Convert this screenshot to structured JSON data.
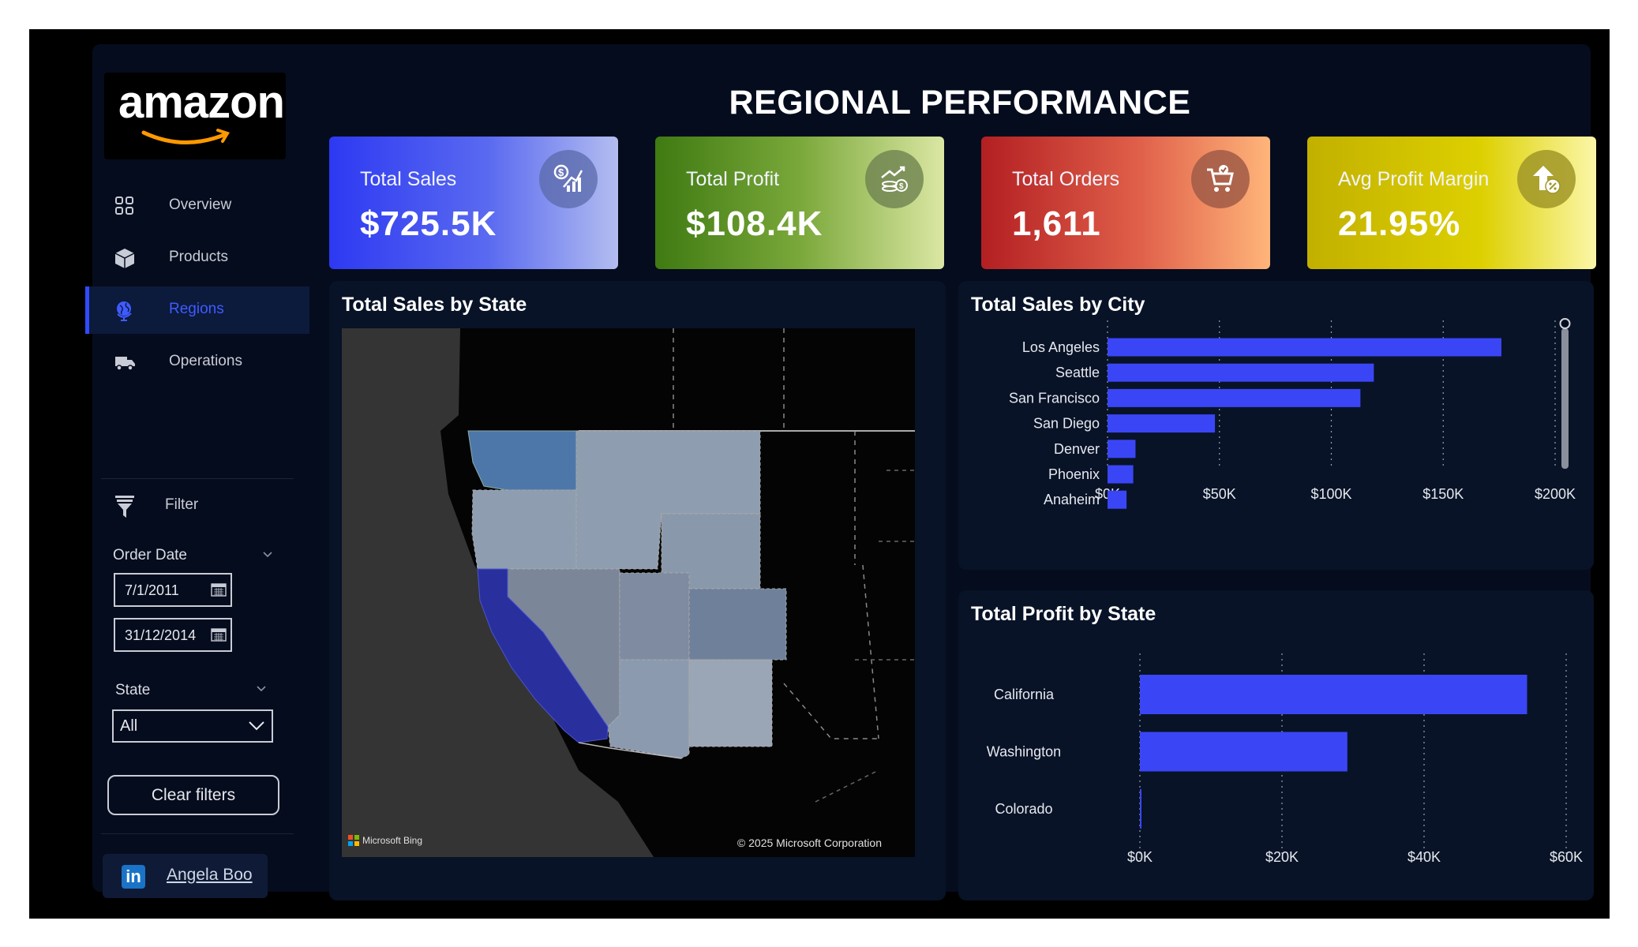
{
  "brand": {
    "logo_text": "amazon"
  },
  "header": {
    "title": "REGIONAL PERFORMANCE"
  },
  "sidebar": {
    "nav": [
      {
        "label": "Overview",
        "icon": "grid-icon"
      },
      {
        "label": "Products",
        "icon": "box-icon"
      },
      {
        "label": "Regions",
        "icon": "globe-icon",
        "active": true
      },
      {
        "label": "Operations",
        "icon": "truck-icon"
      }
    ],
    "filter_title": "Filter",
    "order_date_label": "Order Date",
    "start_date": "7/1/2011",
    "end_date": "31/12/2014",
    "state_label": "State",
    "state_value": "All",
    "clear_label": "Clear filters",
    "profile_name": "Angela Boo"
  },
  "kpis": [
    {
      "label": "Total Sales",
      "value": "$725.5K",
      "icon": "sales-chart-icon"
    },
    {
      "label": "Total Profit",
      "value": "$108.4K",
      "icon": "money-growth-icon"
    },
    {
      "label": "Total Orders",
      "value": "1,611",
      "icon": "cart-icon"
    },
    {
      "label": "Avg Profit Margin",
      "value": "21.95%",
      "icon": "percent-up-icon"
    }
  ],
  "colors": {
    "accent": "#3a46f5",
    "background": "#050c1d",
    "panel": "#081327"
  },
  "map": {
    "title": "Total Sales by State",
    "provider": "Microsoft Bing",
    "copyright": "© 2025 Microsoft Corporation"
  },
  "chart_data": [
    {
      "type": "bar",
      "orientation": "horizontal",
      "title": "Total Sales by City",
      "categories": [
        "Los Angeles",
        "Seattle",
        "San Francisco",
        "San Diego",
        "Denver",
        "Phoenix",
        "Anaheim"
      ],
      "values": [
        176000,
        119000,
        113000,
        48000,
        12500,
        11500,
        8500
      ],
      "xlim": [
        0,
        200000
      ],
      "xticks": [
        "$0K",
        "$50K",
        "$100K",
        "$150K",
        "$200K"
      ],
      "grid": true
    },
    {
      "type": "bar",
      "orientation": "horizontal",
      "title": "Total Profit by State",
      "categories": [
        "California",
        "Washington",
        "Colorado"
      ],
      "values": [
        54500,
        29200,
        100
      ],
      "xlim": [
        0,
        60000
      ],
      "xticks": [
        "$0K",
        "$20K",
        "$40K",
        "$60K"
      ],
      "grid": true
    }
  ]
}
